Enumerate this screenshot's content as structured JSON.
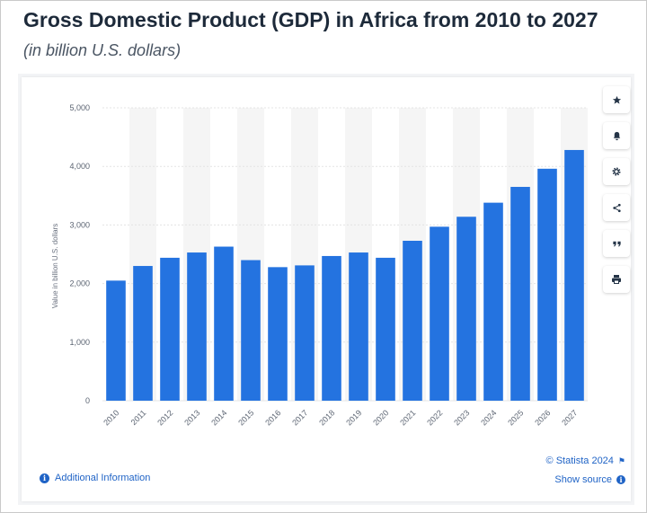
{
  "header": {
    "title": "Gross Domestic Product (GDP) in Africa from 2010 to 2027",
    "subtitle": "(in billion U.S. dollars)"
  },
  "footer": {
    "additional_info": "Additional Information",
    "credit": "© Statista 2024",
    "show_source": "Show source"
  },
  "tools": [
    "star-icon",
    "bell-icon",
    "gear-icon",
    "share-icon",
    "quote-icon",
    "print-icon"
  ],
  "colors": {
    "bar": "#2473e0",
    "band": "#f5f5f5",
    "accent": "#1f63c6"
  },
  "chart_data": {
    "type": "bar",
    "categories": [
      "2010",
      "2011",
      "2012",
      "2013",
      "2014",
      "2015",
      "2016",
      "2017",
      "2018",
      "2019",
      "2020",
      "2021",
      "2022",
      "2023",
      "2024",
      "2025",
      "2026",
      "2027"
    ],
    "values": [
      2050,
      2300,
      2440,
      2530,
      2630,
      2400,
      2280,
      2310,
      2470,
      2530,
      2440,
      2730,
      2970,
      3140,
      3380,
      3650,
      3960,
      4280
    ],
    "ylabel": "Value in billion U.S. dollars",
    "ylim": [
      0,
      5000
    ],
    "yticks": [
      0,
      1000,
      2000,
      3000,
      4000,
      5000
    ],
    "ytick_labels": [
      "0",
      "1,000",
      "2,000",
      "3,000",
      "4,000",
      "5,000"
    ],
    "grid": true
  }
}
